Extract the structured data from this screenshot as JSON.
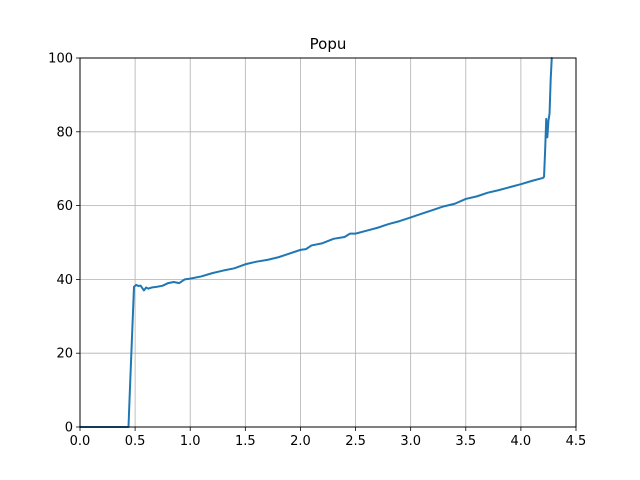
{
  "chart_data": {
    "type": "line",
    "title": "Popu",
    "xlabel": "",
    "ylabel": "",
    "xlim": [
      0,
      4.5
    ],
    "ylim": [
      0,
      100
    ],
    "xticks": [
      0.0,
      0.5,
      1.0,
      1.5,
      2.0,
      2.5,
      3.0,
      3.5,
      4.0,
      4.5
    ],
    "xtick_labels": [
      "0.0",
      "0.5",
      "1.0",
      "1.5",
      "2.0",
      "2.5",
      "3.0",
      "3.5",
      "4.0",
      "4.5"
    ],
    "yticks": [
      0,
      20,
      40,
      60,
      80,
      100
    ],
    "ytick_labels": [
      "0",
      "20",
      "40",
      "60",
      "80",
      "100"
    ],
    "grid": true,
    "series": [
      {
        "color": "#1f77b4",
        "x": [
          0.0,
          0.1,
          0.2,
          0.3,
          0.44,
          0.45,
          0.47,
          0.49,
          0.51,
          0.53,
          0.55,
          0.58,
          0.6,
          0.62,
          0.65,
          0.7,
          0.75,
          0.8,
          0.85,
          0.9,
          0.95,
          1.0,
          1.1,
          1.2,
          1.3,
          1.4,
          1.5,
          1.6,
          1.7,
          1.8,
          1.9,
          2.0,
          2.05,
          2.1,
          2.2,
          2.3,
          2.4,
          2.45,
          2.5,
          2.6,
          2.7,
          2.8,
          2.9,
          3.0,
          3.1,
          3.2,
          3.3,
          3.4,
          3.5,
          3.6,
          3.7,
          3.8,
          3.9,
          4.0,
          4.1,
          4.2,
          4.21,
          4.22,
          4.23,
          4.24,
          4.25,
          4.26,
          4.27,
          4.28
        ],
        "y": [
          0,
          0,
          0,
          0,
          0,
          8,
          23,
          38,
          38.5,
          38.2,
          38.3,
          37.0,
          37.8,
          37.5,
          37.8,
          38.0,
          38.3,
          39.0,
          39.3,
          39.0,
          40.0,
          40.2,
          40.8,
          41.7,
          42.4,
          43.0,
          44.1,
          44.8,
          45.3,
          46.0,
          47.0,
          48.0,
          48.2,
          49.2,
          49.8,
          51.0,
          51.5,
          52.4,
          52.4,
          53.2,
          54.0,
          55.0,
          55.8,
          56.8,
          57.8,
          58.8,
          59.8,
          60.5,
          61.8,
          62.5,
          63.5,
          64.2,
          65.0,
          65.8,
          66.7,
          67.5,
          67.8,
          75.0,
          83.5,
          78.5,
          83.0,
          85.0,
          94.0,
          100.0
        ]
      }
    ]
  }
}
